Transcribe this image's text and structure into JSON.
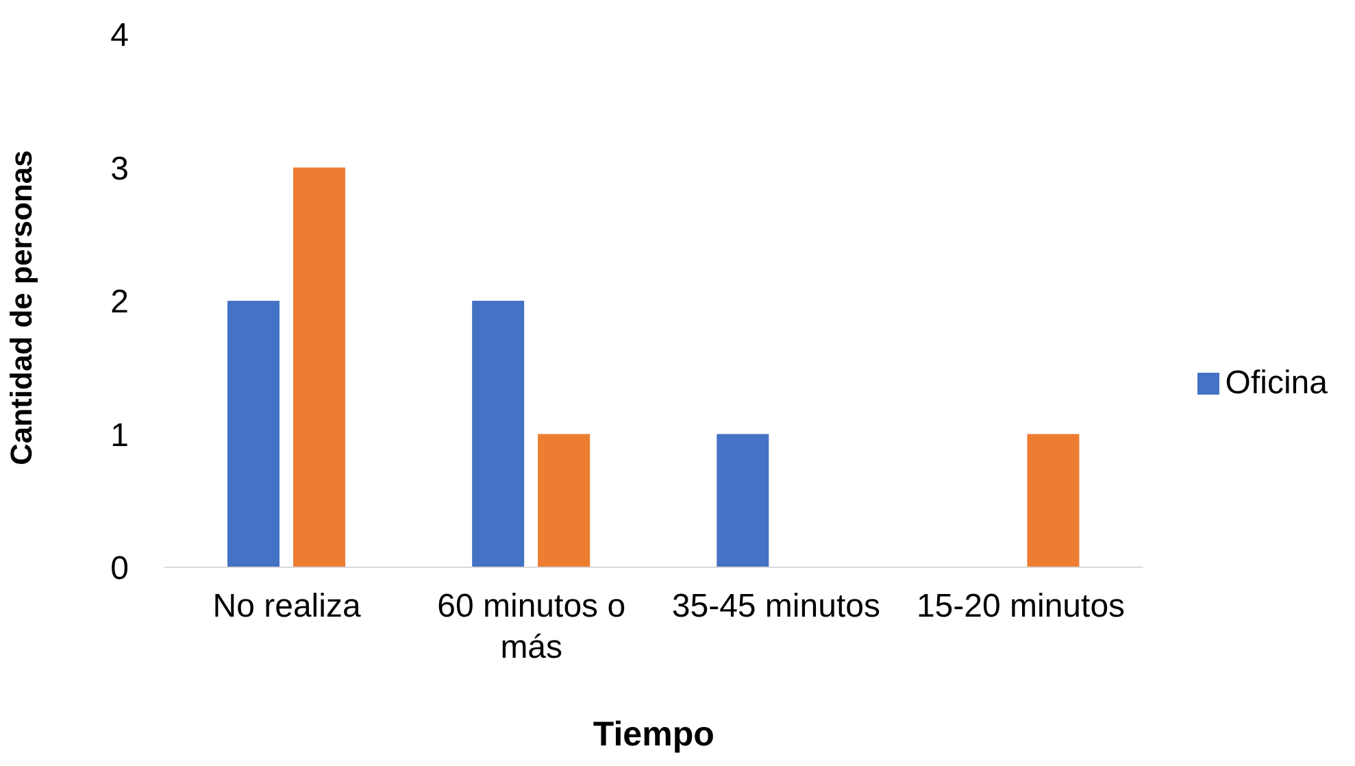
{
  "chart_data": {
    "type": "bar",
    "xlabel": "Tiempo",
    "ylabel": "Cantidad de personas",
    "categories": [
      "No realiza",
      "60 minutos o más",
      "35-45 minutos",
      "15-20 minutos"
    ],
    "series": [
      {
        "name": "Oficina",
        "color": "#4472c4",
        "values": [
          2,
          2,
          1,
          0
        ]
      },
      {
        "color": "#ed7d31",
        "values": [
          3,
          1,
          0,
          1
        ]
      }
    ],
    "ylim": [
      0,
      4
    ],
    "yticks": [
      0,
      1,
      2,
      3,
      4
    ],
    "grid": false,
    "legend": "right"
  }
}
